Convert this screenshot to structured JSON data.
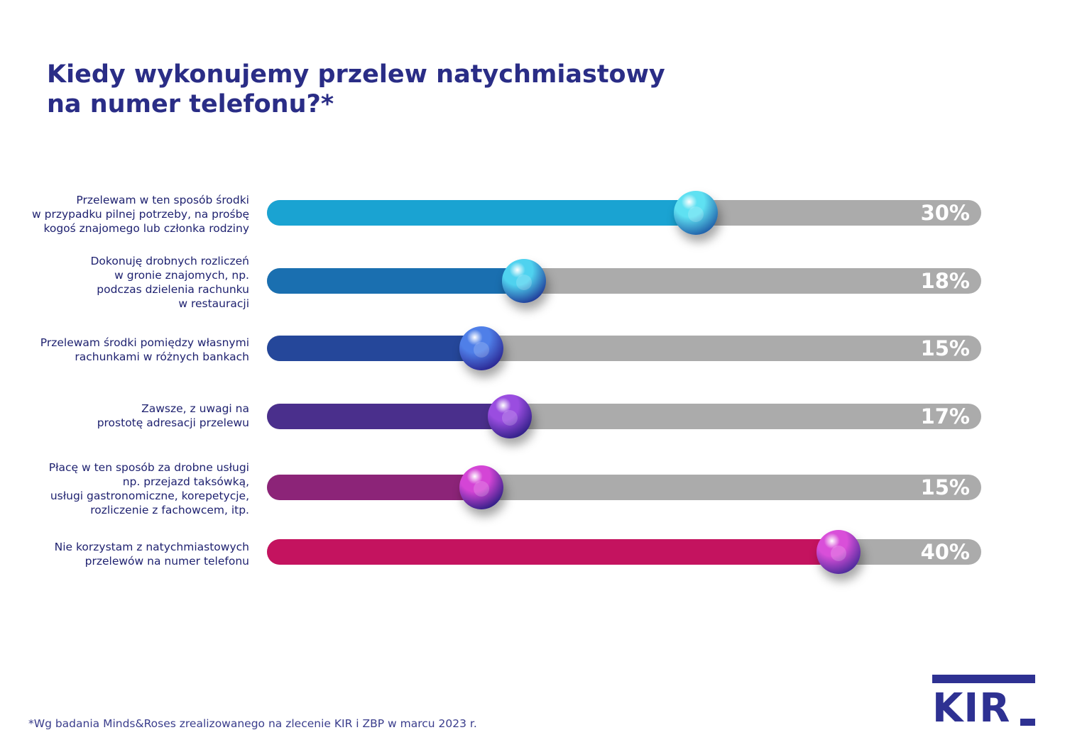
{
  "title": {
    "line1": "Kiedy wykonujemy przelew natychmiastowy",
    "line2": "na numer telefonu?*"
  },
  "chart_data": {
    "type": "bar",
    "orientation": "horizontal",
    "title": "Kiedy wykonujemy przelew natychmiastowy na numer telefonu?*",
    "xlim": [
      0,
      50
    ],
    "unit": "%",
    "grid": false,
    "legend": "none",
    "categories": [
      [
        "Przelewam w ten sposób środki",
        "w przypadku pilnej potrzeby, na prośbę",
        "kogoś znajomego lub członka rodziny"
      ],
      [
        "Dokonuję drobnych rozliczeń",
        "w gronie znajomych, np.",
        "podczas dzielenia rachunku",
        "w restauracji"
      ],
      [
        "Przelewam środki pomiędzy własnymi",
        "rachunkami w różnych bankach"
      ],
      [
        "Zawsze, z uwagi na",
        "prostotę adresacji przelewu"
      ],
      [
        "Płacę w ten sposób za drobne usługi",
        "np. przejazd taksówką,",
        "usługi gastronomiczne, korepetycje,",
        "rozliczenie z fachowcem, itp."
      ],
      [
        "Nie korzystam z natychmiastowych",
        "przelewów na numer telefonu"
      ]
    ],
    "values": [
      30,
      18,
      15,
      17,
      15,
      40
    ],
    "value_labels": [
      "30%",
      "18%",
      "15%",
      "17%",
      "15%",
      "40%"
    ],
    "colors": [
      "#1aa3d2",
      "#1a6fb0",
      "#25479a",
      "#4a2f8c",
      "#8c2478",
      "#c4135f"
    ],
    "knob_colors": [
      [
        "#5fe1f2",
        "#1f5ea8"
      ],
      [
        "#4fd2ef",
        "#1f3a98"
      ],
      [
        "#4f7fe8",
        "#2a2692"
      ],
      [
        "#9a4de0",
        "#2f1f86"
      ],
      [
        "#d445d6",
        "#2f1f86"
      ],
      [
        "#d94fd9",
        "#4a2a9a"
      ]
    ],
    "track_color": "#ababab"
  },
  "footnote": "*Wg badania Minds&Roses zrealizowanego na zlecenie KIR i ZBP w marcu 2023 r.",
  "logo": {
    "text": "KIR",
    "color": "#2e3192"
  }
}
